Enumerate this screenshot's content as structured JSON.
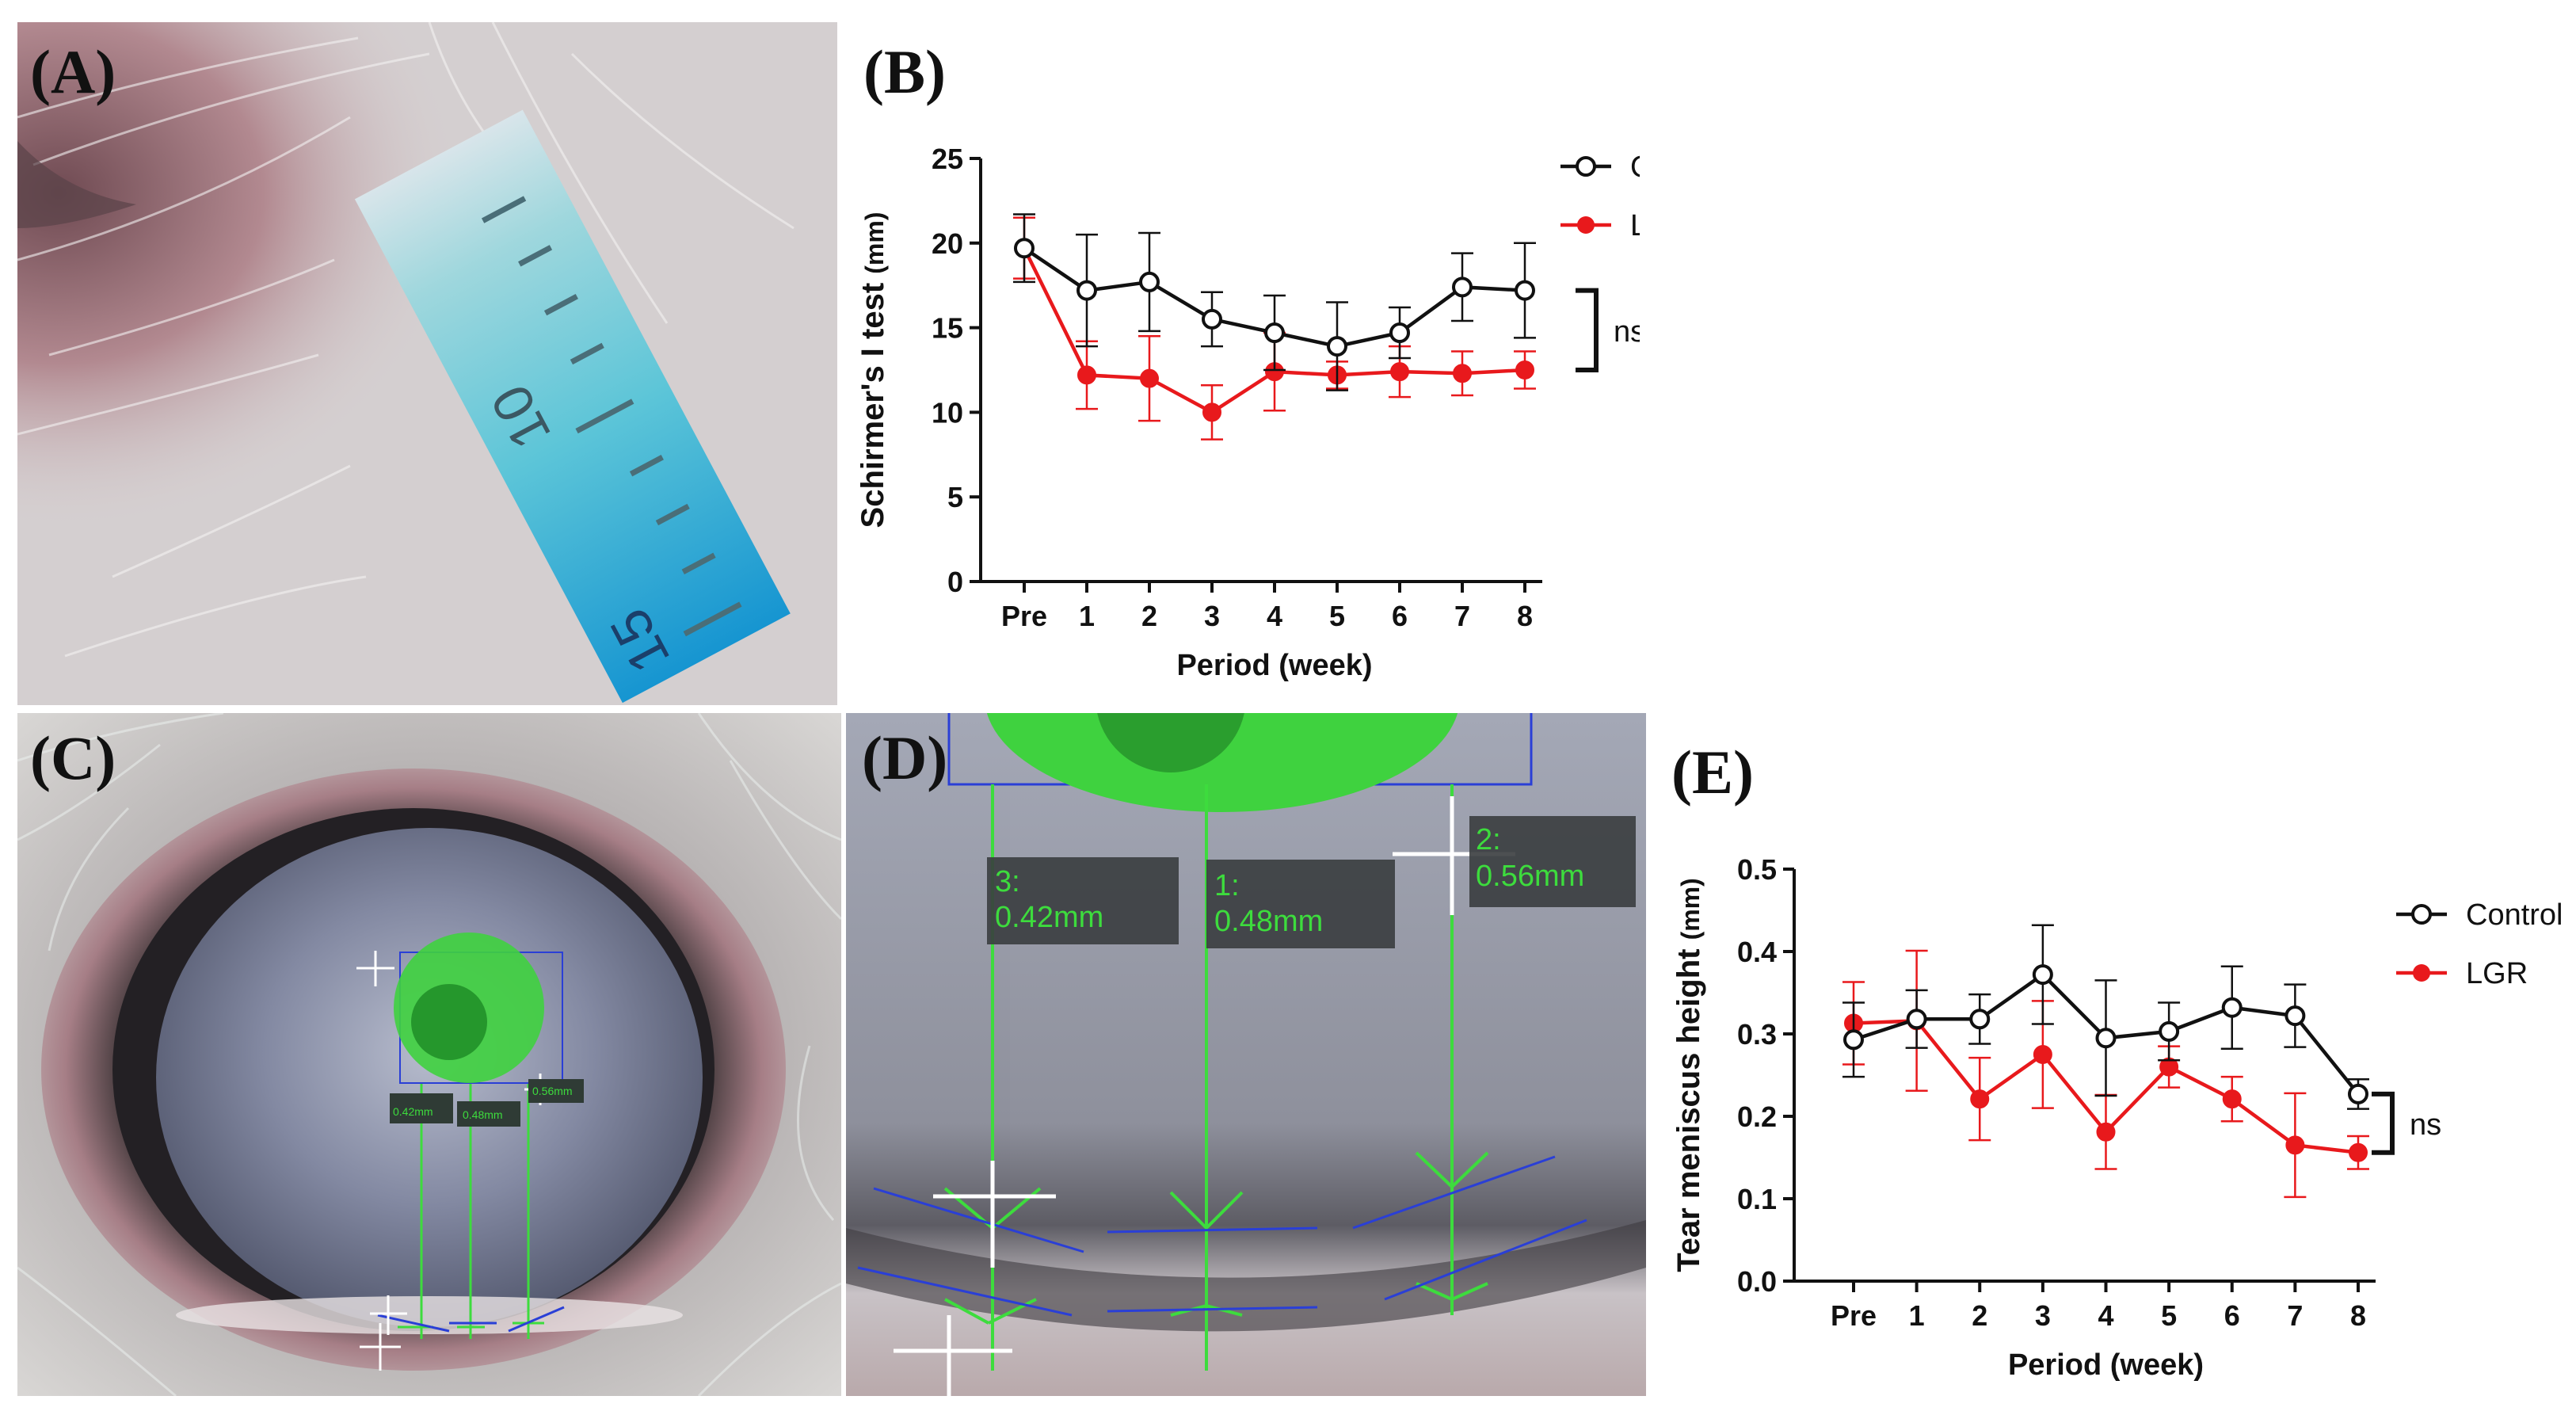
{
  "panels": {
    "a": {
      "label": "(A)",
      "strip_marks": [
        "10",
        "15"
      ]
    },
    "b": {
      "label": "(B)"
    },
    "c": {
      "label": "(C)",
      "measurements": [
        "0.42mm",
        "0.48mm",
        "0.56mm"
      ]
    },
    "d": {
      "label": "(D)",
      "measurements": [
        {
          "index": "3:",
          "value": "0.42mm"
        },
        {
          "index": "1:",
          "value": "0.48mm"
        },
        {
          "index": "2:",
          "value": "0.56mm"
        }
      ]
    },
    "e": {
      "label": "(E)"
    }
  },
  "colors": {
    "control": "#111111",
    "lgr": "#e8191c",
    "measure_green": "#3ddc3d",
    "measure_blue": "#2a3fd6"
  },
  "chart_data": [
    {
      "type": "line",
      "panel": "B",
      "categories": [
        "Pre",
        "1",
        "2",
        "3",
        "4",
        "5",
        "6",
        "7",
        "8"
      ],
      "xlabel": "Period (week)",
      "ylabel": "Schirmer's I test",
      "ylabel_unit": "(mm)",
      "ylim": [
        0,
        25
      ],
      "yticks": [
        "0",
        "5",
        "10",
        "15",
        "20",
        "25"
      ],
      "series": [
        {
          "name": "Control",
          "marker": "open-circle",
          "color": "#111111",
          "values": [
            19.7,
            17.2,
            17.7,
            15.5,
            14.7,
            13.9,
            14.7,
            17.4,
            17.2
          ],
          "errors": [
            2.0,
            3.3,
            2.9,
            1.6,
            2.2,
            2.6,
            1.5,
            2.0,
            2.8
          ]
        },
        {
          "name": "LGR",
          "marker": "filled-circle",
          "color": "#e8191c",
          "values": [
            19.7,
            12.2,
            12.0,
            10.0,
            12.4,
            12.2,
            12.4,
            12.3,
            12.5
          ],
          "errors": [
            1.8,
            2.0,
            2.5,
            1.6,
            2.3,
            0.8,
            1.5,
            1.3,
            1.1
          ]
        }
      ],
      "legend_position": "top-right",
      "significance": "ns"
    },
    {
      "type": "line",
      "panel": "E",
      "categories": [
        "Pre",
        "1",
        "2",
        "3",
        "4",
        "5",
        "6",
        "7",
        "8"
      ],
      "xlabel": "Period (week)",
      "ylabel": "Tear meniscus height",
      "ylabel_unit": "(mm)",
      "ylim": [
        0,
        0.5
      ],
      "yticks": [
        "0.0",
        "0.1",
        "0.2",
        "0.3",
        "0.4",
        "0.5"
      ],
      "series": [
        {
          "name": "Control",
          "marker": "open-circle",
          "color": "#111111",
          "values": [
            0.293,
            0.318,
            0.318,
            0.372,
            0.295,
            0.303,
            0.332,
            0.322,
            0.227
          ],
          "errors": [
            0.045,
            0.035,
            0.03,
            0.06,
            0.07,
            0.035,
            0.05,
            0.038,
            0.018
          ]
        },
        {
          "name": "LGR",
          "marker": "filled-circle",
          "color": "#e8191c",
          "values": [
            0.313,
            0.316,
            0.221,
            0.275,
            0.181,
            0.26,
            0.221,
            0.165,
            0.156
          ],
          "errors": [
            0.05,
            0.085,
            0.05,
            0.065,
            0.045,
            0.025,
            0.027,
            0.063,
            0.02
          ]
        }
      ],
      "legend_position": "top-right",
      "significance": "ns"
    }
  ]
}
